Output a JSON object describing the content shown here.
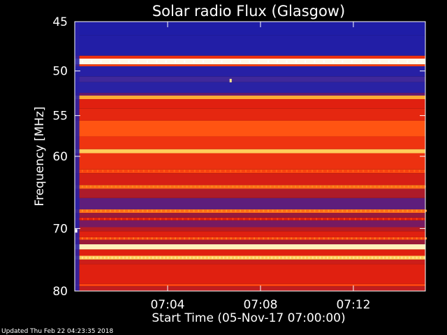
{
  "chart_data": {
    "type": "heatmap",
    "title": "Solar radio Flux (Glasgow)",
    "xlabel": "Start Time (05-Nov-17 07:00:00)",
    "ylabel": "Frequency [MHz]",
    "footer": "Updated Thu Feb 22 04:23:35 2018",
    "y_axis": {
      "min": 45,
      "max": 80,
      "scale": "log",
      "ticks": [
        {
          "value": 45,
          "label": "45"
        },
        {
          "value": 50,
          "label": "50"
        },
        {
          "value": 55,
          "label": "55"
        },
        {
          "value": 60,
          "label": "60"
        },
        {
          "value": 70,
          "label": "70"
        },
        {
          "value": 80,
          "label": "80"
        }
      ]
    },
    "x_axis": {
      "min_minutes": 0,
      "max_minutes": 15.1,
      "ticks": [
        {
          "value": 4,
          "label": "07:04"
        },
        {
          "value": 8,
          "label": "07:08"
        },
        {
          "value": 12,
          "label": "07:12"
        }
      ]
    },
    "colormap": [
      "#1a1aa8",
      "#3a2aa0",
      "#6a1a70",
      "#a01a30",
      "#e02010",
      "#ff4a10",
      "#ff9a20",
      "#ffe070",
      "#ffffff"
    ],
    "bands": [
      {
        "f_low": 45.0,
        "f_high": 46.3,
        "level": 0.02
      },
      {
        "f_low": 46.3,
        "f_high": 48.4,
        "level": 0.03
      },
      {
        "f_low": 48.4,
        "f_high": 48.7,
        "level": 0.55
      },
      {
        "f_low": 48.7,
        "f_high": 49.3,
        "level": 0.98
      },
      {
        "f_low": 49.3,
        "f_high": 49.5,
        "level": 0.6
      },
      {
        "f_low": 49.5,
        "f_high": 50.6,
        "level": 0.05
      },
      {
        "f_low": 50.6,
        "f_high": 51.2,
        "level": 0.14
      },
      {
        "f_low": 51.2,
        "f_high": 52.4,
        "level": 0.06
      },
      {
        "f_low": 52.4,
        "f_high": 52.7,
        "level": 0.25
      },
      {
        "f_low": 52.7,
        "f_high": 53.1,
        "level": 0.78
      },
      {
        "f_low": 53.1,
        "f_high": 54.2,
        "level": 0.5
      },
      {
        "f_low": 54.2,
        "f_high": 55.6,
        "level": 0.52
      },
      {
        "f_low": 55.6,
        "f_high": 57.5,
        "level": 0.64
      },
      {
        "f_low": 57.5,
        "f_high": 59.1,
        "level": 0.56
      },
      {
        "f_low": 59.1,
        "f_high": 59.6,
        "level": 0.84
      },
      {
        "f_low": 59.6,
        "f_high": 61.7,
        "level": 0.55
      },
      {
        "f_low": 61.7,
        "f_high": 62.2,
        "level": 0.6
      },
      {
        "f_low": 62.2,
        "f_high": 63.8,
        "level": 0.48
      },
      {
        "f_low": 63.8,
        "f_high": 64.3,
        "level": 0.68
      },
      {
        "f_low": 64.3,
        "f_high": 65.6,
        "level": 0.4
      },
      {
        "f_low": 65.6,
        "f_high": 67.2,
        "level": 0.22
      },
      {
        "f_low": 67.2,
        "f_high": 67.7,
        "level": 0.68
      },
      {
        "f_low": 67.7,
        "f_high": 68.4,
        "level": 0.35
      },
      {
        "f_low": 68.4,
        "f_high": 68.8,
        "level": 0.5
      },
      {
        "f_low": 68.8,
        "f_high": 69.8,
        "level": 0.28
      },
      {
        "f_low": 69.8,
        "f_high": 70.4,
        "level": 0.42
      },
      {
        "f_low": 70.4,
        "f_high": 71.3,
        "level": 0.5
      },
      {
        "f_low": 71.3,
        "f_high": 71.7,
        "level": 0.62
      },
      {
        "f_low": 71.7,
        "f_high": 72.4,
        "level": 0.36
      },
      {
        "f_low": 72.4,
        "f_high": 73.2,
        "level": 0.94
      },
      {
        "f_low": 73.2,
        "f_high": 74.2,
        "level": 0.5
      },
      {
        "f_low": 74.2,
        "f_high": 74.8,
        "level": 0.84
      },
      {
        "f_low": 74.8,
        "f_high": 75.5,
        "level": 0.46
      },
      {
        "f_low": 75.5,
        "f_high": 78.8,
        "level": 0.5
      },
      {
        "f_low": 78.8,
        "f_high": 79.2,
        "level": 0.6
      },
      {
        "f_low": 79.2,
        "f_high": 80.0,
        "level": 0.44
      }
    ],
    "speckle_lines": [
      {
        "freq": 49.0,
        "level": 1.0,
        "period_min": 0.4
      },
      {
        "freq": 61.9,
        "level": 0.66,
        "period_min": 0.22
      },
      {
        "freq": 64.0,
        "level": 0.72,
        "period_min": 0.18
      },
      {
        "freq": 67.4,
        "level": 0.74,
        "period_min": 0.2
      },
      {
        "freq": 68.6,
        "level": 0.6,
        "period_min": 0.24
      },
      {
        "freq": 71.5,
        "level": 0.7,
        "period_min": 0.2
      },
      {
        "freq": 74.5,
        "level": 0.9,
        "period_min": 0.16
      }
    ],
    "leading_edge": {
      "t_start": 0.0,
      "t_end": 0.2,
      "level": 0.05
    },
    "hot_spots": [
      {
        "t": 6.7,
        "freq": 51.0,
        "level": 0.9
      },
      {
        "t": 0.05,
        "freq": 70.3,
        "level": 1.0
      }
    ]
  }
}
